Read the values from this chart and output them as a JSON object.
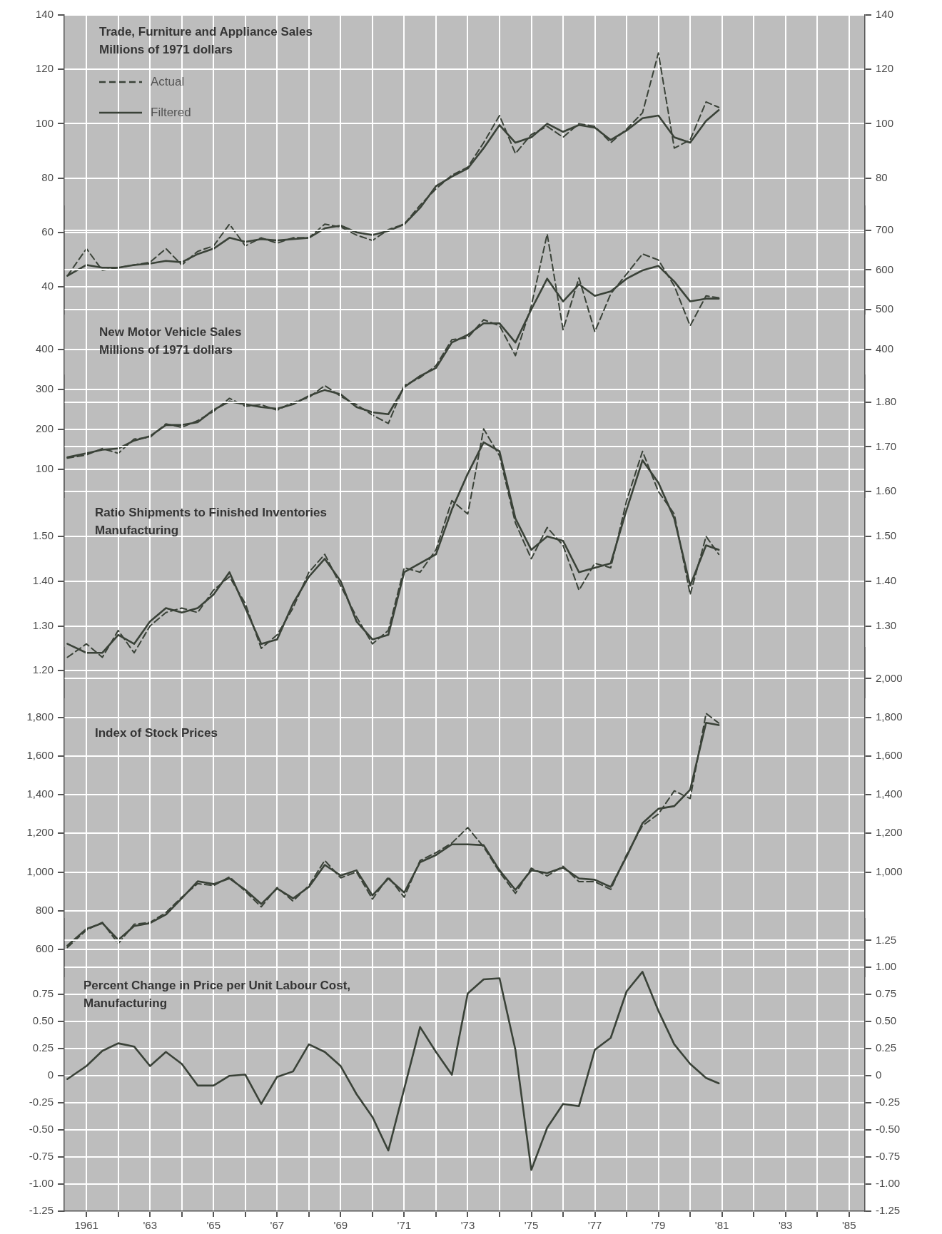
{
  "chart_data": [
    {
      "type": "line",
      "title": "Trade, Furniture and Appliance Sales",
      "subtitle": "Millions of 1971 dollars",
      "legend": "top left",
      "marker": "none",
      "grid": true,
      "tick_labels": "y",
      "x": [
        1960.4,
        1961,
        1961.5,
        1962,
        1962.5,
        1963,
        1963.5,
        1964,
        1964.5,
        1965,
        1965.5,
        1966,
        1966.5,
        1967,
        1967.5,
        1968,
        1968.5,
        1969,
        1969.5,
        1970,
        1970.5,
        1971,
        1971.5,
        1972,
        1972.5,
        1973,
        1973.5,
        1974,
        1974.5,
        1975,
        1975.5,
        1976,
        1976.5,
        1977,
        1977.5,
        1978,
        1978.5,
        1979,
        1979.5,
        1980,
        1980.5,
        1980.9
      ],
      "xlim": [
        1960.3,
        1985.5
      ],
      "xticks": [
        1961,
        1962,
        1963,
        1964,
        1965,
        1966,
        1967,
        1968,
        1969,
        1970,
        1971,
        1972,
        1973,
        1974,
        1975,
        1976,
        1977,
        1978,
        1979,
        1980,
        1981,
        1982,
        1983,
        1984,
        1985
      ],
      "ylim": [
        30,
        140
      ],
      "yticks": [
        40,
        60,
        80,
        100,
        120,
        140
      ],
      "y2lim": [
        30,
        140
      ],
      "y2ticks": [
        80,
        100,
        120,
        140
      ],
      "series": [
        {
          "name": "Actual",
          "color": "#3a4238",
          "line_style": "dashed",
          "values": [
            44,
            54,
            46,
            47,
            48,
            49,
            54,
            48,
            53,
            55,
            63,
            55,
            58,
            56,
            58,
            58,
            63,
            62,
            59,
            57,
            61,
            63,
            70,
            76,
            81,
            84,
            93,
            103,
            89,
            96,
            99,
            95,
            100,
            99,
            93,
            98,
            104,
            126,
            91,
            94,
            108,
            106
          ]
        },
        {
          "name": "Filtered",
          "color": "#3a4238",
          "line_style": "solid",
          "values": [
            44,
            48,
            47,
            47,
            48,
            48.5,
            49.5,
            49,
            52,
            54,
            58,
            56.5,
            57.5,
            57,
            57.5,
            58,
            61.5,
            62.5,
            60,
            59,
            60.5,
            63,
            69,
            77,
            80.5,
            83.5,
            91,
            99.5,
            93,
            95,
            100,
            97,
            99.5,
            98.5,
            94,
            97.5,
            102,
            103,
            95,
            93,
            101,
            105
          ]
        }
      ]
    },
    {
      "type": "line",
      "title": "New Motor Vehicle Sales",
      "subtitle": "Millions of 1971 dollars",
      "marker": "none",
      "grid": true,
      "tick_labels": "y",
      "x": [
        1960.4,
        1961,
        1961.5,
        1962,
        1962.5,
        1963,
        1963.5,
        1964,
        1964.5,
        1965,
        1965.5,
        1966,
        1966.5,
        1967,
        1967.5,
        1968,
        1968.5,
        1969,
        1969.5,
        1970,
        1970.5,
        1971,
        1971.5,
        1972,
        1972.5,
        1973,
        1973.5,
        1974,
        1974.5,
        1975,
        1975.5,
        1976,
        1976.5,
        1977,
        1977.5,
        1978,
        1978.5,
        1979,
        1979.5,
        1980,
        1980.5,
        1980.9
      ],
      "xlim": [
        1960.3,
        1985.5
      ],
      "xticks": [
        1961,
        1962,
        1963,
        1964,
        1965,
        1966,
        1967,
        1968,
        1969,
        1970,
        1971,
        1972,
        1973,
        1974,
        1975,
        1976,
        1977,
        1978,
        1979,
        1980,
        1981,
        1982,
        1983,
        1984,
        1985
      ],
      "ylim": [
        30,
        760
      ],
      "yticks": [
        100,
        200,
        300,
        400
      ],
      "y2lim": [
        30,
        760
      ],
      "y2ticks": [
        400,
        500,
        600,
        700
      ],
      "series": [
        {
          "color": "#3a4238",
          "line_style": "dashed",
          "values": [
            128,
            136,
            152,
            140,
            176,
            180,
            214,
            205,
            222,
            245,
            278,
            258,
            262,
            248,
            268,
            280,
            310,
            283,
            262,
            236,
            215,
            310,
            330,
            360,
            425,
            430,
            475,
            460,
            385,
            510,
            690,
            450,
            580,
            445,
            540,
            590,
            640,
            625,
            560,
            460,
            535,
            530
          ]
        },
        {
          "color": "#3a4238",
          "line_style": "solid",
          "values": [
            130,
            140,
            149,
            152,
            172,
            183,
            211,
            211,
            218,
            249,
            270,
            263,
            256,
            252,
            263,
            284,
            299,
            288,
            256,
            243,
            238,
            306,
            334,
            354,
            418,
            437,
            466,
            466,
            418,
            501,
            578,
            521,
            564,
            535,
            546,
            578,
            599,
            610,
            571,
            521,
            528,
            528
          ]
        }
      ]
    },
    {
      "type": "line",
      "title": "Ratio Shipments to Finished Inventories",
      "subtitle": "Manufacturing",
      "marker": "none",
      "grid": true,
      "tick_labels": "y",
      "x": [
        1960.4,
        1961,
        1961.5,
        1962,
        1962.5,
        1963,
        1963.5,
        1964,
        1964.5,
        1965,
        1965.5,
        1966,
        1966.5,
        1967,
        1967.5,
        1968,
        1968.5,
        1969,
        1969.5,
        1970,
        1970.5,
        1971,
        1971.5,
        1972,
        1972.5,
        1973,
        1973.5,
        1974,
        1974.5,
        1975,
        1975.5,
        1976,
        1976.5,
        1977,
        1977.5,
        1978,
        1978.5,
        1979,
        1979.5,
        1980,
        1980.5,
        1980.9
      ],
      "xlim": [
        1960.3,
        1985.5
      ],
      "xticks": [
        1961,
        1962,
        1963,
        1964,
        1965,
        1966,
        1967,
        1968,
        1969,
        1970,
        1971,
        1972,
        1973,
        1974,
        1975,
        1976,
        1977,
        1978,
        1979,
        1980,
        1981,
        1982,
        1983,
        1984,
        1985
      ],
      "ylim": [
        1.14,
        1.86
      ],
      "yticks": [
        {
          "value": 1.2,
          "label": "1.20"
        },
        {
          "value": 1.3,
          "label": "1.30"
        },
        {
          "value": 1.4,
          "label": "1.40"
        },
        {
          "value": 1.5,
          "label": "1.50"
        }
      ],
      "y2lim": [
        1.14,
        1.86
      ],
      "y2ticks": [
        {
          "value": 1.3,
          "label": "1.30"
        },
        {
          "value": 1.4,
          "label": "1.40"
        },
        {
          "value": 1.5,
          "label": "1.50"
        },
        {
          "value": 1.6,
          "label": "1.60"
        },
        {
          "value": 1.7,
          "label": "1.70"
        },
        {
          "value": 1.8,
          "label": "1.80"
        }
      ],
      "series": [
        {
          "color": "#3a4238",
          "line_style": "dashed",
          "values": [
            1.23,
            1.26,
            1.23,
            1.29,
            1.24,
            1.3,
            1.33,
            1.34,
            1.33,
            1.38,
            1.41,
            1.35,
            1.25,
            1.28,
            1.34,
            1.42,
            1.46,
            1.39,
            1.32,
            1.26,
            1.29,
            1.43,
            1.42,
            1.47,
            1.58,
            1.55,
            1.74,
            1.68,
            1.53,
            1.45,
            1.52,
            1.48,
            1.38,
            1.44,
            1.43,
            1.58,
            1.69,
            1.6,
            1.55,
            1.37,
            1.5,
            1.46
          ]
        },
        {
          "color": "#3a4238",
          "line_style": "solid",
          "values": [
            1.26,
            1.24,
            1.24,
            1.28,
            1.26,
            1.31,
            1.34,
            1.33,
            1.34,
            1.37,
            1.42,
            1.34,
            1.26,
            1.27,
            1.35,
            1.41,
            1.45,
            1.4,
            1.31,
            1.27,
            1.28,
            1.42,
            1.44,
            1.46,
            1.56,
            1.64,
            1.71,
            1.69,
            1.54,
            1.47,
            1.5,
            1.49,
            1.42,
            1.43,
            1.44,
            1.56,
            1.67,
            1.62,
            1.54,
            1.39,
            1.48,
            1.47
          ]
        }
      ]
    },
    {
      "type": "line",
      "title": "Index of Stock Prices",
      "marker": "none",
      "grid": true,
      "tick_labels": "y",
      "x": [
        1960.4,
        1961,
        1961.5,
        1962,
        1962.5,
        1963,
        1963.5,
        1964,
        1964.5,
        1965,
        1965.5,
        1966,
        1966.5,
        1967,
        1967.5,
        1968,
        1968.5,
        1969,
        1969.5,
        1970,
        1970.5,
        1971,
        1971.5,
        1972,
        1972.5,
        1973,
        1973.5,
        1974,
        1974.5,
        1975,
        1975.5,
        1976,
        1976.5,
        1977,
        1977.5,
        1978,
        1978.5,
        1979,
        1979.5,
        1980,
        1980.5,
        1980.9
      ],
      "xlim": [
        1960.3,
        1985.5
      ],
      "xticks": [
        1961,
        1962,
        1963,
        1964,
        1965,
        1966,
        1967,
        1968,
        1969,
        1970,
        1971,
        1972,
        1973,
        1974,
        1975,
        1976,
        1977,
        1978,
        1979,
        1980,
        1981,
        1982,
        1983,
        1984,
        1985
      ],
      "ylim": [
        460,
        2160
      ],
      "yticks": [
        600,
        800,
        {
          "value": 1000,
          "label": "1,000"
        },
        {
          "value": 1200,
          "label": "1,200"
        },
        {
          "value": 1400,
          "label": "1,400"
        },
        {
          "value": 1600,
          "label": "1,600"
        },
        {
          "value": 1800,
          "label": "1,800"
        }
      ],
      "y2lim": [
        460,
        2160
      ],
      "y2ticks": [
        {
          "value": 1000,
          "label": "1,000"
        },
        {
          "value": 1200,
          "label": "1,200"
        },
        {
          "value": 1400,
          "label": "1,400"
        },
        {
          "value": 1600,
          "label": "1,600"
        },
        {
          "value": 1800,
          "label": "1,800"
        },
        {
          "value": 2000,
          "label": "2,000"
        }
      ],
      "series": [
        {
          "color": "#3a4238",
          "line_style": "dashed",
          "values": [
            610,
            700,
            740,
            630,
            730,
            740,
            790,
            870,
            940,
            930,
            975,
            900,
            820,
            920,
            850,
            930,
            1060,
            970,
            1000,
            860,
            975,
            870,
            1060,
            1100,
            1150,
            1230,
            1130,
            1000,
            890,
            1020,
            980,
            1030,
            950,
            950,
            910,
            1090,
            1240,
            1300,
            1420,
            1380,
            1820,
            1770
          ]
        },
        {
          "color": "#3a4238",
          "line_style": "solid",
          "values": [
            620,
            706,
            736,
            649,
            721,
            736,
            780,
            864,
            952,
            938,
            967,
            908,
            835,
            915,
            864,
            923,
            1037,
            982,
            1009,
            879,
            967,
            894,
            1051,
            1088,
            1143,
            1143,
            1139,
            1009,
            908,
            1009,
            995,
            1023,
            967,
            960,
            923,
            1081,
            1253,
            1327,
            1341,
            1426,
            1772,
            1760
          ]
        }
      ]
    },
    {
      "type": "line",
      "title": "Percent Change in Price per Unit Labour Cost,",
      "subtitle": "Manufacturing",
      "marker": "none",
      "grid": true,
      "x": [
        1960.4,
        1961,
        1961.5,
        1962,
        1962.5,
        1963,
        1963.5,
        1964,
        1964.5,
        1965,
        1965.5,
        1966,
        1966.5,
        1967,
        1967.5,
        1968,
        1968.5,
        1969,
        1969.5,
        1970,
        1970.5,
        1971,
        1971.5,
        1972,
        1972.5,
        1973,
        1973.5,
        1974,
        1974.5,
        1975,
        1975.5,
        1976,
        1976.5,
        1977,
        1977.5,
        1978,
        1978.5,
        1979,
        1979.5,
        1980,
        1980.5,
        1980.9
      ],
      "xlim": [
        1960.3,
        1985.5
      ],
      "xticks": [
        {
          "value": 1961,
          "label": "1961"
        },
        {
          "value": 1962,
          "label": null
        },
        {
          "value": 1963,
          "label": "'63"
        },
        {
          "value": 1964,
          "label": null
        },
        {
          "value": 1965,
          "label": "'65"
        },
        {
          "value": 1966,
          "label": null
        },
        {
          "value": 1967,
          "label": "'67"
        },
        {
          "value": 1968,
          "label": null
        },
        {
          "value": 1969,
          "label": "'69"
        },
        {
          "value": 1970,
          "label": null
        },
        {
          "value": 1971,
          "label": "'71"
        },
        {
          "value": 1972,
          "label": null
        },
        {
          "value": 1973,
          "label": "'73"
        },
        {
          "value": 1974,
          "label": null
        },
        {
          "value": 1975,
          "label": "'75"
        },
        {
          "value": 1976,
          "label": null
        },
        {
          "value": 1977,
          "label": "'77"
        },
        {
          "value": 1978,
          "label": null
        },
        {
          "value": 1979,
          "label": "'79"
        },
        {
          "value": 1980,
          "label": null
        },
        {
          "value": 1981,
          "label": "'81"
        },
        {
          "value": 1982,
          "label": null
        },
        {
          "value": 1983,
          "label": "'83"
        },
        {
          "value": 1984,
          "label": null
        },
        {
          "value": 1985,
          "label": "'85"
        }
      ],
      "ylim": [
        -1.25,
        1.45
      ],
      "yticks": [
        -1.25,
        {
          "value": -1,
          "label": "-1.00"
        },
        -0.75,
        {
          "value": -0.5,
          "label": "-0.50"
        },
        -0.25,
        0,
        0.25,
        {
          "value": 0.5,
          "label": "0.50"
        },
        0.75
      ],
      "y2lim": [
        -1.25,
        1.45
      ],
      "y2ticks": [
        -1.25,
        {
          "value": -1,
          "label": "-1.00"
        },
        -0.75,
        {
          "value": -0.5,
          "label": "-0.50"
        },
        -0.25,
        0,
        0.25,
        {
          "value": 0.5,
          "label": "0.50"
        },
        0.75,
        {
          "value": 1,
          "label": "1.00"
        },
        1.25
      ],
      "series": [
        {
          "color": "#3a4238",
          "line_style": "solid",
          "values": [
            -0.03,
            0.09,
            0.23,
            0.3,
            0.27,
            0.09,
            0.22,
            0.11,
            -0.09,
            -0.09,
            0,
            0.01,
            -0.26,
            -0.01,
            0.04,
            0.29,
            0.22,
            0.09,
            -0.17,
            -0.38,
            -0.69,
            -0.12,
            0.45,
            0.22,
            0.01,
            0.76,
            0.89,
            0.9,
            0.24,
            -0.87,
            -0.48,
            -0.26,
            -0.28,
            0.24,
            0.35,
            0.78,
            0.96,
            0.6,
            0.29,
            0.11,
            -0.02,
            -0.07
          ]
        }
      ]
    }
  ]
}
